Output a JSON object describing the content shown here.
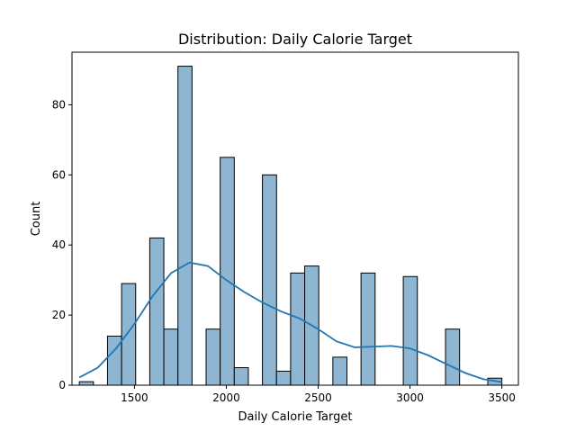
{
  "chart_data": {
    "type": "bar",
    "title": "Distribution: Daily Calorie Target",
    "xlabel": "Daily Calorie Target",
    "ylabel": "Count",
    "xlim": [
      1160,
      3590
    ],
    "ylim": [
      0,
      95
    ],
    "x_ticks": [
      1500,
      2000,
      2500,
      3000,
      3500
    ],
    "y_ticks": [
      0,
      20,
      40,
      60,
      80
    ],
    "bin_width": 76.67,
    "bins": [
      {
        "start": 1200.0,
        "count": 1
      },
      {
        "start": 1353.3,
        "count": 14
      },
      {
        "start": 1430.0,
        "count": 29
      },
      {
        "start": 1583.3,
        "count": 42
      },
      {
        "start": 1660.0,
        "count": 16
      },
      {
        "start": 1736.7,
        "count": 91
      },
      {
        "start": 1890.0,
        "count": 16
      },
      {
        "start": 1966.7,
        "count": 65
      },
      {
        "start": 2043.3,
        "count": 5
      },
      {
        "start": 2196.7,
        "count": 60
      },
      {
        "start": 2273.3,
        "count": 4
      },
      {
        "start": 2350.0,
        "count": 32
      },
      {
        "start": 2426.7,
        "count": 34
      },
      {
        "start": 2580.0,
        "count": 8
      },
      {
        "start": 2733.3,
        "count": 32
      },
      {
        "start": 2963.3,
        "count": 31
      },
      {
        "start": 3193.3,
        "count": 16
      },
      {
        "start": 3423.3,
        "count": 2
      }
    ],
    "kde": {
      "name": "",
      "x": [
        1200,
        1300,
        1400,
        1500,
        1600,
        1700,
        1800,
        1900,
        2000,
        2100,
        2200,
        2300,
        2400,
        2500,
        2600,
        2700,
        2800,
        2900,
        3000,
        3100,
        3200,
        3300,
        3400,
        3500
      ],
      "y": [
        2.2,
        5,
        10.5,
        17.5,
        25.5,
        32,
        35,
        34,
        30,
        26.5,
        23.5,
        21,
        19,
        16,
        12.5,
        10.8,
        11,
        11.2,
        10.5,
        8.5,
        6,
        3.5,
        1.7,
        0.9
      ]
    },
    "grid": false,
    "legend": "none"
  }
}
